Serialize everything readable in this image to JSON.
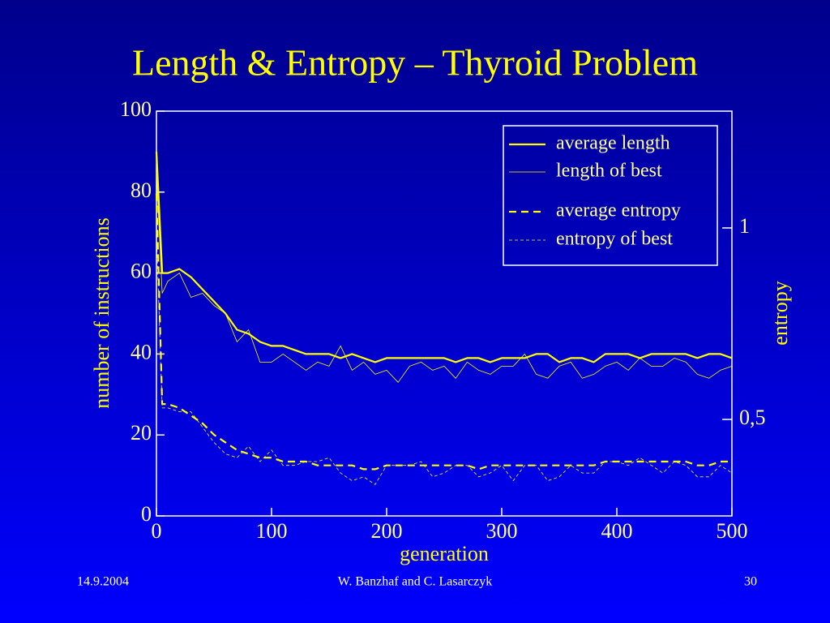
{
  "title": "Length & Entropy – Thyroid Problem",
  "footer": {
    "date": "14.9.2004",
    "author": "W. Banzhaf and C. Lasarczyk",
    "page": "30"
  },
  "chart_data": {
    "type": "line",
    "xlabel": "generation",
    "ylabel": "number of instructions",
    "y2label": "entropy",
    "x": [
      0,
      5,
      10,
      20,
      30,
      40,
      50,
      60,
      70,
      80,
      90,
      100,
      110,
      120,
      130,
      140,
      150,
      160,
      170,
      180,
      190,
      200,
      210,
      220,
      230,
      240,
      250,
      260,
      270,
      280,
      290,
      300,
      310,
      320,
      330,
      340,
      350,
      360,
      370,
      380,
      390,
      400,
      410,
      420,
      430,
      440,
      450,
      460,
      470,
      480,
      490,
      500
    ],
    "xlim": [
      0,
      500
    ],
    "xticks": [
      0,
      100,
      200,
      300,
      400,
      500
    ],
    "ylim": [
      0,
      100
    ],
    "yticks": [
      0,
      20,
      40,
      60,
      80,
      100
    ],
    "y2lim": [
      0.248,
      1.305
    ],
    "y2ticks": [
      {
        "value": 0.5,
        "label": "0,5"
      },
      1
    ],
    "legend": "upper right",
    "series": [
      {
        "name": "average length",
        "color": "#ffff00",
        "dash": false,
        "width": 2.2,
        "values": [
          90,
          60,
          60,
          61,
          59,
          56,
          53,
          50,
          46,
          45,
          43,
          42,
          42,
          41,
          40,
          40,
          40,
          39,
          40,
          39,
          38,
          39,
          39,
          39,
          39,
          39,
          39,
          38,
          39,
          39,
          38,
          39,
          39,
          39,
          40,
          40,
          38,
          39,
          39,
          38,
          40,
          40,
          40,
          39,
          40,
          40,
          40,
          40,
          39,
          40,
          40,
          39
        ]
      },
      {
        "name": "length of best",
        "color": "#ffff00",
        "dash": false,
        "width": 0.8,
        "values": [
          85,
          55,
          58,
          60,
          54,
          55,
          52,
          50,
          43,
          46,
          38,
          38,
          40,
          38,
          36,
          38,
          37,
          42,
          36,
          38,
          35,
          36,
          33,
          37,
          38,
          36,
          37,
          34,
          38,
          36,
          35,
          37,
          37,
          40,
          35,
          34,
          37,
          38,
          34,
          35,
          37,
          38,
          36,
          39,
          37,
          37,
          39,
          38,
          35,
          34,
          36,
          37
        ]
      },
      {
        "name": "average entropy",
        "color": "#ffff00",
        "dash": true,
        "width": 2.2,
        "axis": "y2",
        "values": [
          1.09,
          0.54,
          0.54,
          0.53,
          0.51,
          0.49,
          0.46,
          0.44,
          0.42,
          0.41,
          0.4,
          0.4,
          0.39,
          0.39,
          0.39,
          0.38,
          0.38,
          0.38,
          0.38,
          0.37,
          0.37,
          0.38,
          0.38,
          0.38,
          0.38,
          0.38,
          0.38,
          0.38,
          0.38,
          0.37,
          0.38,
          0.38,
          0.38,
          0.38,
          0.38,
          0.38,
          0.38,
          0.38,
          0.38,
          0.38,
          0.39,
          0.39,
          0.39,
          0.39,
          0.39,
          0.39,
          0.39,
          0.39,
          0.38,
          0.38,
          0.39,
          0.39
        ]
      },
      {
        "name": "entropy of best",
        "color": "#ffff00",
        "dash": true,
        "width": 0.8,
        "axis": "y2",
        "values": [
          0.99,
          0.53,
          0.53,
          0.52,
          0.52,
          0.48,
          0.44,
          0.41,
          0.4,
          0.43,
          0.39,
          0.42,
          0.38,
          0.38,
          0.39,
          0.39,
          0.4,
          0.36,
          0.34,
          0.35,
          0.33,
          0.38,
          0.38,
          0.38,
          0.39,
          0.35,
          0.36,
          0.38,
          0.38,
          0.35,
          0.36,
          0.38,
          0.34,
          0.38,
          0.38,
          0.34,
          0.35,
          0.38,
          0.36,
          0.36,
          0.39,
          0.39,
          0.38,
          0.4,
          0.38,
          0.36,
          0.39,
          0.38,
          0.35,
          0.35,
          0.38,
          0.36
        ]
      }
    ]
  }
}
